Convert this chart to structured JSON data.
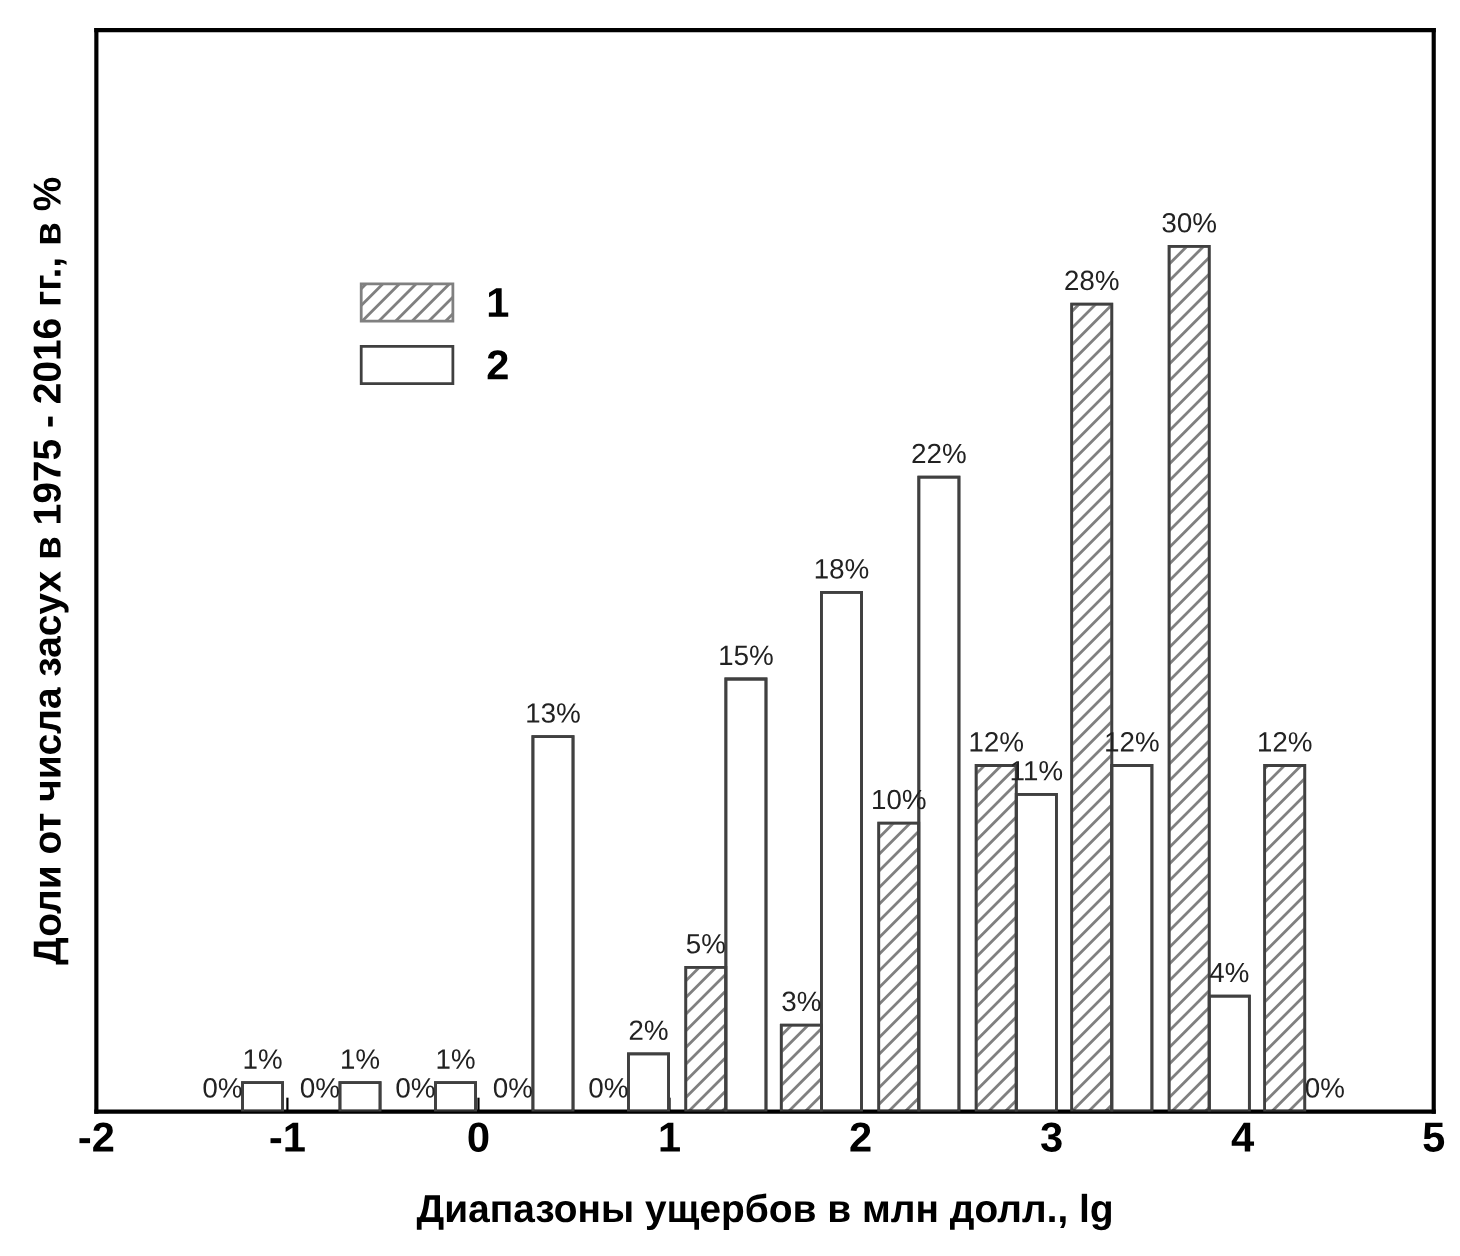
{
  "chart_data": {
    "type": "bar",
    "xlabel": "Диапазоны ущербов в млн долл., lg",
    "ylabel": "Доли от числа засух в 1975 - 2016 гг., в %",
    "xlim": [
      -2,
      5
    ],
    "xticks": [
      -2,
      -1,
      0,
      1,
      2,
      3,
      4,
      5
    ],
    "tick_labels": "x",
    "grid": false,
    "legend": "top left",
    "series": [
      {
        "name": "1",
        "color": "#808080",
        "x": [
          -1.34,
          -0.83,
          -0.33,
          0.18,
          0.68,
          1.19,
          1.69,
          2.2,
          2.71,
          3.21,
          3.72,
          4.22
        ],
        "values": [
          0,
          0,
          0,
          0,
          0,
          5,
          3,
          10,
          12,
          28,
          30,
          12
        ],
        "value_labels": [
          "0%",
          "0%",
          "0%",
          "0%",
          "0%",
          "5%",
          "3%",
          "10%",
          "12%",
          "28%",
          "30%",
          "12%"
        ]
      },
      {
        "name": "2",
        "color": "#ffffff",
        "x": [
          -1.13,
          -0.62,
          -0.12,
          0.39,
          0.89,
          1.4,
          1.9,
          2.41,
          2.92,
          3.42,
          3.93,
          4.43
        ],
        "values": [
          1,
          1,
          1,
          13,
          2,
          15,
          18,
          22,
          11,
          12,
          4,
          0
        ],
        "value_labels": [
          "1%",
          "1%",
          "1%",
          "13%",
          "2%",
          "15%",
          "18%",
          "22%",
          "11%",
          "12%",
          "4%",
          "0%"
        ]
      }
    ]
  }
}
